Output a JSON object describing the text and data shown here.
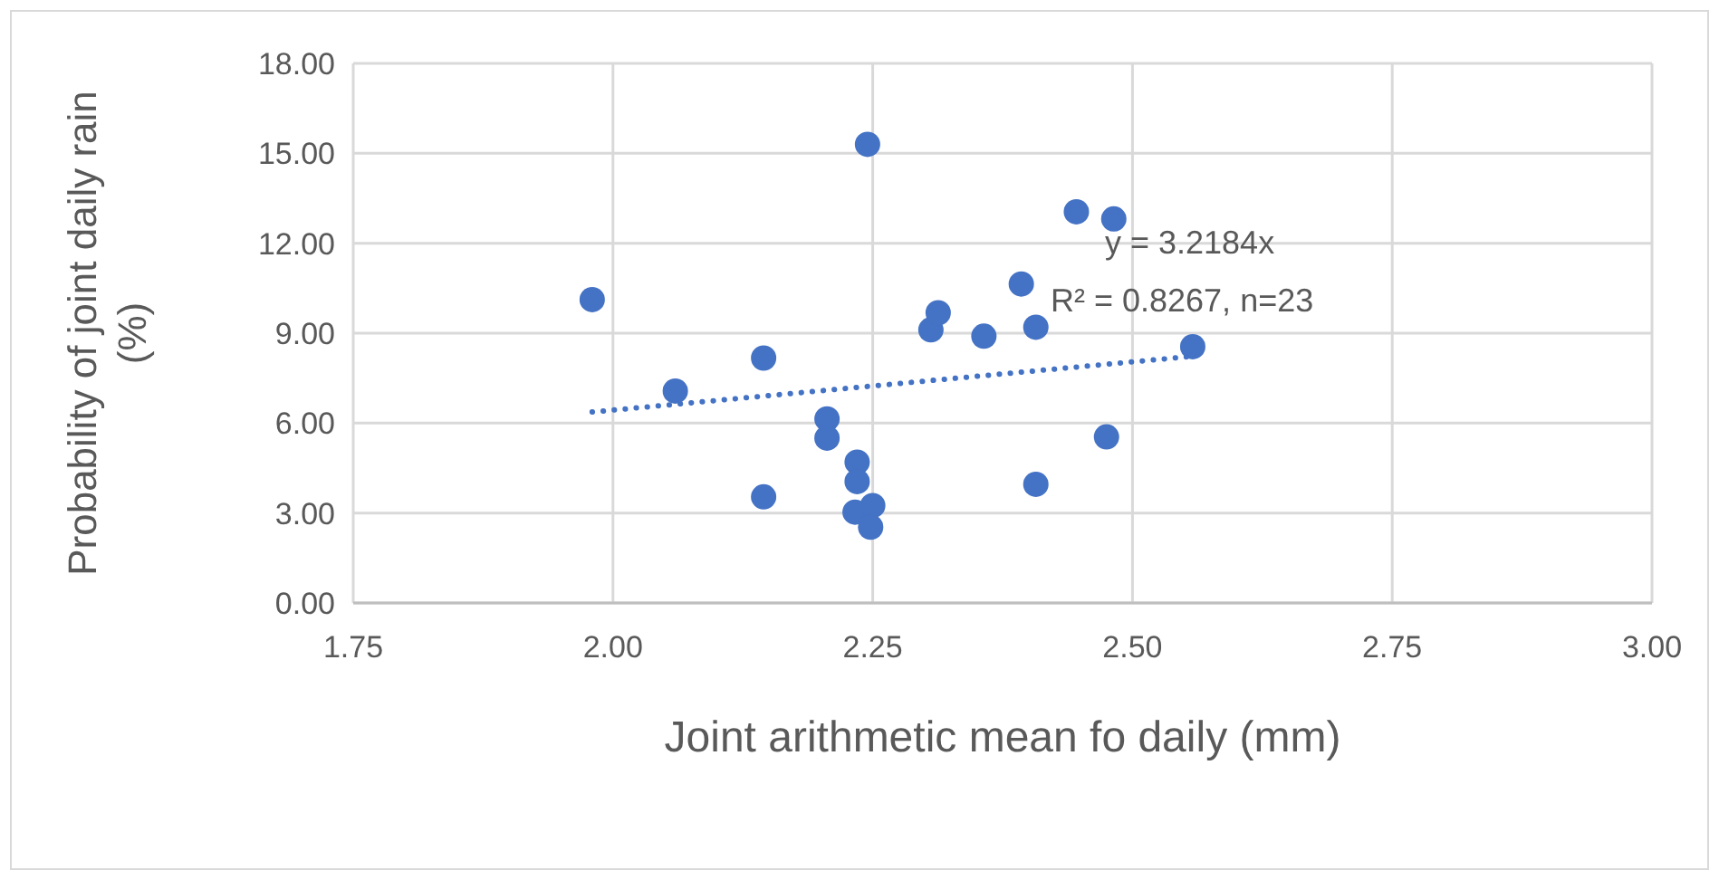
{
  "chart_data": {
    "type": "scatter",
    "xlabel": "Joint arithmetic mean fo daily (mm)",
    "ylabel": "Probability of joint daily rain (%)",
    "xlim": [
      1.75,
      3.0
    ],
    "ylim": [
      0,
      18
    ],
    "xticks": [
      {
        "value": 1.75,
        "label": "1.75"
      },
      {
        "value": 2.0,
        "label": "2.00"
      },
      {
        "value": 2.25,
        "label": "2.25"
      },
      {
        "value": 2.5,
        "label": "2.50"
      },
      {
        "value": 2.75,
        "label": "2.75"
      },
      {
        "value": 3.0,
        "label": "3.00"
      }
    ],
    "yticks": [
      {
        "value": 0,
        "label": "0.00"
      },
      {
        "value": 3,
        "label": "3.00"
      },
      {
        "value": 6,
        "label": "6.00"
      },
      {
        "value": 9,
        "label": "9.00"
      },
      {
        "value": 12,
        "label": "12.00"
      },
      {
        "value": 15,
        "label": "15.00"
      },
      {
        "value": 18,
        "label": "18.00"
      }
    ],
    "grid": true,
    "marker": "circle",
    "series": [
      {
        "color": "#4472c4",
        "x": [
          1.98,
          2.06,
          2.145,
          2.145,
          2.206,
          2.206,
          2.235,
          2.235,
          2.233,
          2.25,
          2.248,
          2.245,
          2.306,
          2.313,
          2.357,
          2.393,
          2.407,
          2.407,
          2.446,
          2.482,
          2.475,
          2.558
        ],
        "values": [
          10.12,
          7.07,
          8.17,
          3.54,
          6.14,
          5.5,
          4.7,
          4.05,
          3.03,
          3.25,
          2.53,
          15.3,
          9.11,
          9.68,
          8.9,
          10.64,
          9.2,
          3.96,
          13.05,
          12.81,
          5.54,
          8.55
        ]
      },
      {
        "type": "line",
        "color": "#4472c4",
        "line_style": "dotted",
        "marker": "none",
        "x": [
          1.98,
          2.558
        ],
        "values": [
          6.37,
          8.23
        ]
      }
    ],
    "annotations": [
      "y = 3.2184x",
      "R² = 0.8267, n=23"
    ]
  }
}
